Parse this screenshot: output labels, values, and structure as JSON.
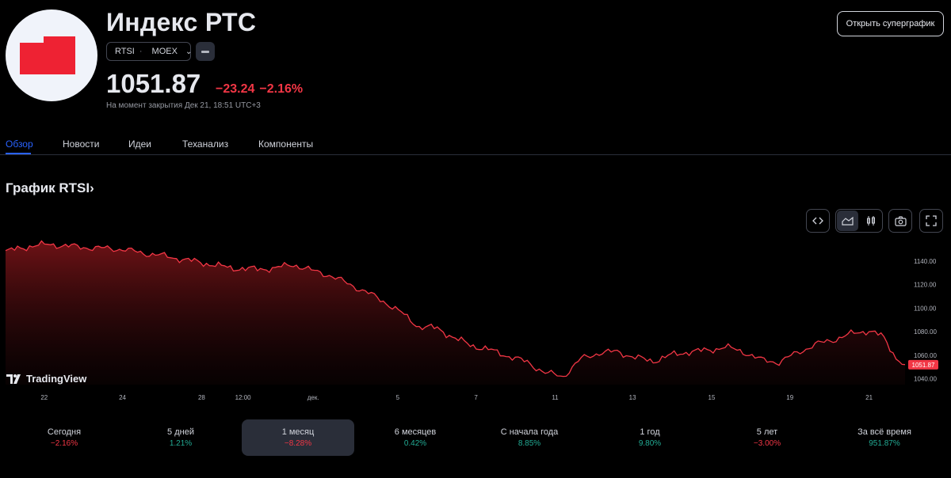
{
  "header": {
    "title": "Индекс РТС",
    "ticker": "RTSI",
    "exchange": "MOEX",
    "price": "1051.87",
    "change_abs": "−23.24",
    "change_pct": "−2.16%",
    "closed_note": "На момент закрытия Дек 21, 18:51 UTC+3",
    "supergraph_button": "Открыть суперграфик"
  },
  "tabs": [
    {
      "label": "Обзор",
      "active": true
    },
    {
      "label": "Новости"
    },
    {
      "label": "Идеи"
    },
    {
      "label": "Теханализ"
    },
    {
      "label": "Компоненты"
    }
  ],
  "chart_section": {
    "title": "График RTSI›",
    "watermark": "TradingView",
    "last_price_label": "1051.87"
  },
  "chart_data": {
    "type": "area",
    "series_color": "#f23645",
    "ylim": [
      1035,
      1160
    ],
    "y_ticks": [
      "1140.00",
      "1120.00",
      "1100.00",
      "1080.00",
      "1060.00",
      "1040.00"
    ],
    "x_ticks": [
      "22",
      "24",
      "28",
      "12:00",
      "дек.",
      "5",
      "7",
      "11",
      "13",
      "15",
      "19",
      "21"
    ],
    "x": [
      0,
      0.03,
      0.05,
      0.08,
      0.1,
      0.13,
      0.15,
      0.17,
      0.2,
      0.23,
      0.25,
      0.28,
      0.3,
      0.32,
      0.34,
      0.36,
      0.38,
      0.4,
      0.42,
      0.44,
      0.46,
      0.48,
      0.5,
      0.52,
      0.54,
      0.56,
      0.58,
      0.6,
      0.62,
      0.64,
      0.66,
      0.68,
      0.7,
      0.72,
      0.74,
      0.76,
      0.78,
      0.8,
      0.82,
      0.84,
      0.86,
      0.88,
      0.9,
      0.92,
      0.94,
      0.96,
      0.975,
      0.99,
      1.0
    ],
    "values": [
      1148,
      1153,
      1154,
      1152,
      1151,
      1150,
      1147,
      1145,
      1141,
      1137,
      1134,
      1133,
      1134,
      1137,
      1132,
      1128,
      1121,
      1114,
      1106,
      1096,
      1084,
      1083,
      1074,
      1068,
      1064,
      1059,
      1054,
      1045,
      1042,
      1057,
      1062,
      1063,
      1058,
      1055,
      1060,
      1063,
      1064,
      1067,
      1063,
      1056,
      1054,
      1062,
      1069,
      1073,
      1078,
      1081,
      1076,
      1058,
      1052
    ]
  },
  "periods": [
    {
      "label": "Сегодня",
      "value": "−2.16%",
      "dir": "neg"
    },
    {
      "label": "5 дней",
      "value": "1.21%",
      "dir": "pos"
    },
    {
      "label": "1 месяц",
      "value": "−8.28%",
      "dir": "neg",
      "selected": true
    },
    {
      "label": "6 месяцев",
      "value": "0.42%",
      "dir": "pos"
    },
    {
      "label": "С начала года",
      "value": "8.85%",
      "dir": "pos"
    },
    {
      "label": "1 год",
      "value": "9.80%",
      "dir": "pos"
    },
    {
      "label": "5 лет",
      "value": "−3.00%",
      "dir": "neg"
    },
    {
      "label": "За всё время",
      "value": "951.87%",
      "dir": "pos"
    }
  ]
}
